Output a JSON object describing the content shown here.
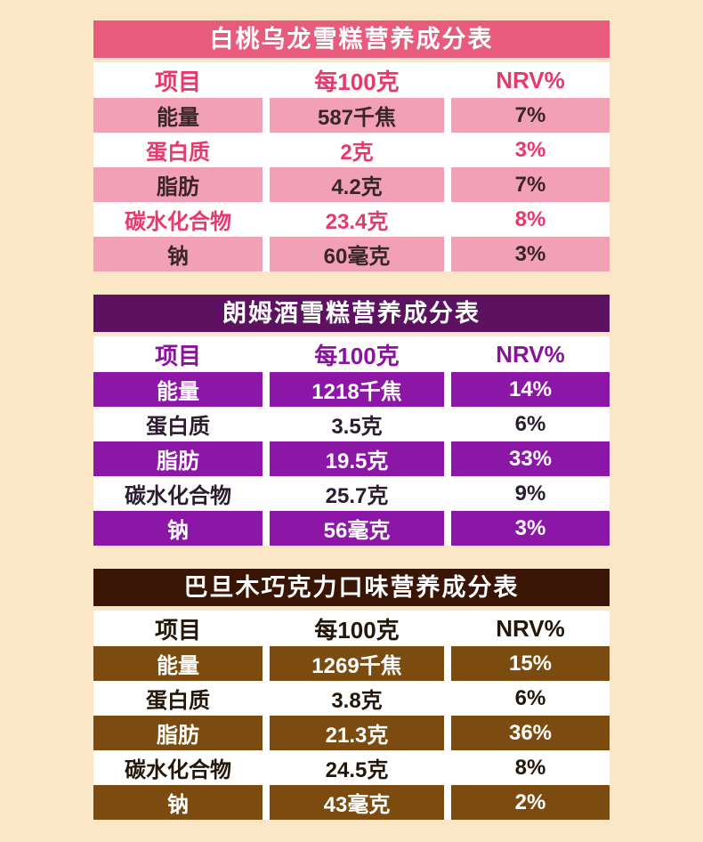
{
  "page": {
    "background": "#fbe7c5"
  },
  "chart_data": [
    {
      "type": "table",
      "title": "白桃乌龙雪糕营养成分表",
      "columns": [
        "项目",
        "每100克",
        "NRV%"
      ],
      "rows": [
        [
          "能量",
          "587千焦",
          "7%"
        ],
        [
          "蛋白质",
          "2克",
          "3%"
        ],
        [
          "脂肪",
          "4.2克",
          "7%"
        ],
        [
          "碳水化合物",
          "23.4克",
          "8%"
        ],
        [
          "钠",
          "60毫克",
          "3%"
        ]
      ],
      "colors": {
        "title_bar_bg": "#e95b7d",
        "title_bar_text": "#ffffff",
        "header_text": "#e7396e",
        "colored_row_bg": "#f2a0b5",
        "colored_row_text": "#3a262a",
        "plain_row_text": "#e7396e"
      }
    },
    {
      "type": "table",
      "title": "朗姆酒雪糕营养成分表",
      "columns": [
        "项目",
        "每100克",
        "NRV%"
      ],
      "rows": [
        [
          "能量",
          "1218千焦",
          "14%"
        ],
        [
          "蛋白质",
          "3.5克",
          "6%"
        ],
        [
          "脂肪",
          "19.5克",
          "33%"
        ],
        [
          "碳水化合物",
          "25.7克",
          "9%"
        ],
        [
          "钠",
          "56毫克",
          "3%"
        ]
      ],
      "colors": {
        "title_bar_bg": "#5d1261",
        "title_bar_text": "#ffffff",
        "header_text": "#8a139e",
        "colored_row_bg": "#8c16a6",
        "colored_row_text": "#ffffff",
        "plain_row_text": "#2c1c30"
      }
    },
    {
      "type": "table",
      "title": "巴旦木巧克力口味营养成分表",
      "columns": [
        "项目",
        "每100克",
        "NRV%"
      ],
      "rows": [
        [
          "能量",
          "1269千焦",
          "15%"
        ],
        [
          "蛋白质",
          "3.8克",
          "6%"
        ],
        [
          "脂肪",
          "21.3克",
          "36%"
        ],
        [
          "碳水化合物",
          "24.5克",
          "8%"
        ],
        [
          "钠",
          "43毫克",
          "2%"
        ]
      ],
      "colors": {
        "title_bar_bg": "#3a1506",
        "title_bar_text": "#ffffff",
        "header_text": "#241608",
        "colored_row_bg": "#7c4b0f",
        "colored_row_text": "#ffffff",
        "plain_row_text": "#241608"
      }
    }
  ]
}
